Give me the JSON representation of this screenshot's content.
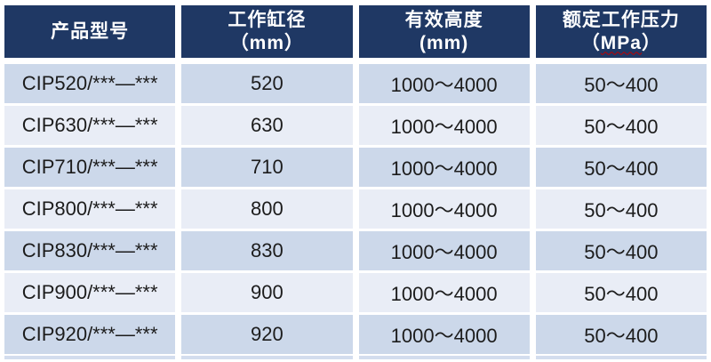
{
  "table": {
    "header": {
      "col1": {
        "title": "产品型号"
      },
      "col2": {
        "title": "工作缸径",
        "unit": "（mm）"
      },
      "col3": {
        "title": "有效高度",
        "unit": "(mm)"
      },
      "col4": {
        "title": "额定工作压力",
        "unit_open": "（",
        "unit_word": "MPa",
        "unit_close": "）"
      }
    },
    "rows": [
      {
        "model": "CIP520/***—***",
        "bore": "520",
        "height": "1000～4000",
        "pressure": "50～400"
      },
      {
        "model": "CIP630/***—***",
        "bore": "630",
        "height": "1000～4000",
        "pressure": "50～400"
      },
      {
        "model": "CIP710/***—***",
        "bore": "710",
        "height": "1000～4000",
        "pressure": "50～400"
      },
      {
        "model": "CIP800/***—***",
        "bore": "800",
        "height": "1000～4000",
        "pressure": "50～400"
      },
      {
        "model": "CIP830/***—***",
        "bore": "830",
        "height": "1000～4000",
        "pressure": "50～400"
      },
      {
        "model": "CIP900/***—***",
        "bore": "900",
        "height": "1000～4000",
        "pressure": "50～400"
      },
      {
        "model": "CIP920/***—***",
        "bore": "920",
        "height": "1000～4000",
        "pressure": "50～400"
      }
    ],
    "colors": {
      "header_bg": "#1F3864",
      "header_text": "#FFFFFF",
      "row_band_dark": "#CCD8EA",
      "row_band_light": "#E9EDF6",
      "body_text": "#1C1C1C",
      "spellcheck_underline": "#C00000",
      "gridline": "#FFFFFF"
    }
  }
}
